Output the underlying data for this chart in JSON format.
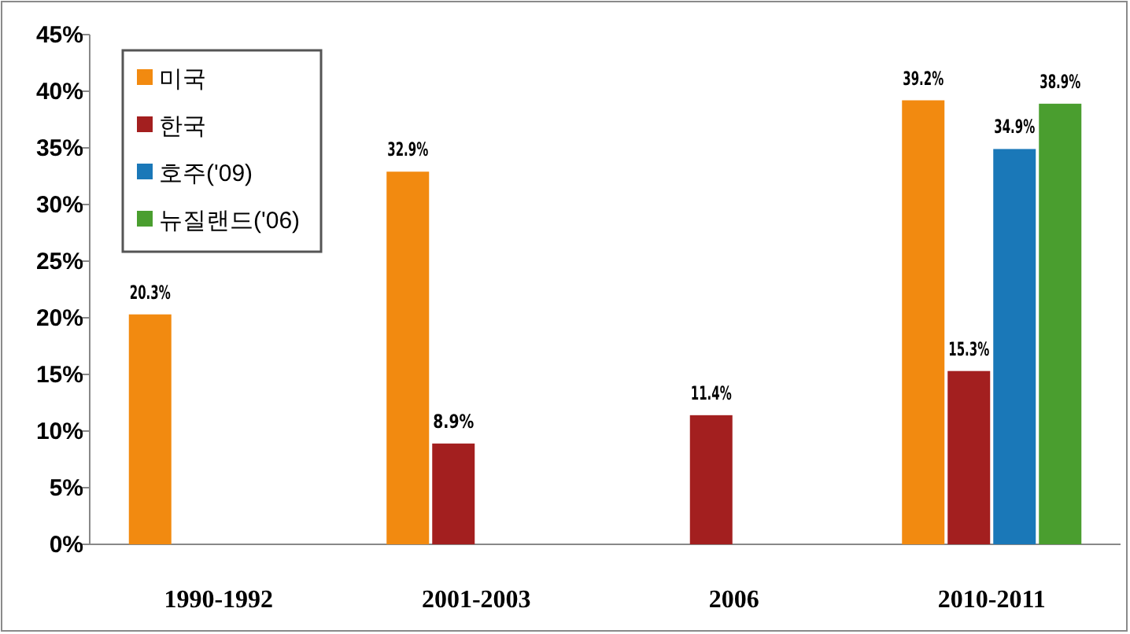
{
  "chart_data": {
    "type": "bar",
    "categories": [
      "1990-1992",
      "2001-2003",
      "2006",
      "2010-2011"
    ],
    "series": [
      {
        "name": "미국",
        "color": "#f28a10",
        "values": [
          20.3,
          32.9,
          null,
          39.2
        ],
        "value_labels": [
          "20.3%",
          "32.9%",
          null,
          "39.2%"
        ]
      },
      {
        "name": "한국",
        "color": "#a31f1f",
        "values": [
          null,
          8.9,
          11.4,
          15.3
        ],
        "value_labels": [
          null,
          "8.9%",
          "11.4%",
          "15.3%"
        ]
      },
      {
        "name": "호주('09)",
        "color": "#1a78b8",
        "values": [
          null,
          null,
          null,
          34.9
        ],
        "value_labels": [
          null,
          null,
          null,
          "34.9%"
        ]
      },
      {
        "name": "뉴질랜드('06)",
        "color": "#4a9e2f",
        "values": [
          null,
          null,
          null,
          38.9
        ],
        "value_labels": [
          null,
          null,
          null,
          "38.9%"
        ]
      }
    ],
    "ylim": [
      0,
      45
    ],
    "yticks": [
      {
        "value": 0,
        "label": "0%"
      },
      {
        "value": 5,
        "label": "5%"
      },
      {
        "value": 10,
        "label": "10%"
      },
      {
        "value": 15,
        "label": "15%"
      },
      {
        "value": 20,
        "label": "20%"
      },
      {
        "value": 25,
        "label": "25%"
      },
      {
        "value": 30,
        "label": "30%"
      },
      {
        "value": 35,
        "label": "35%"
      },
      {
        "value": 40,
        "label": "40%"
      },
      {
        "value": 45,
        "label": "45%"
      }
    ],
    "legend": "top left",
    "grid": false
  }
}
